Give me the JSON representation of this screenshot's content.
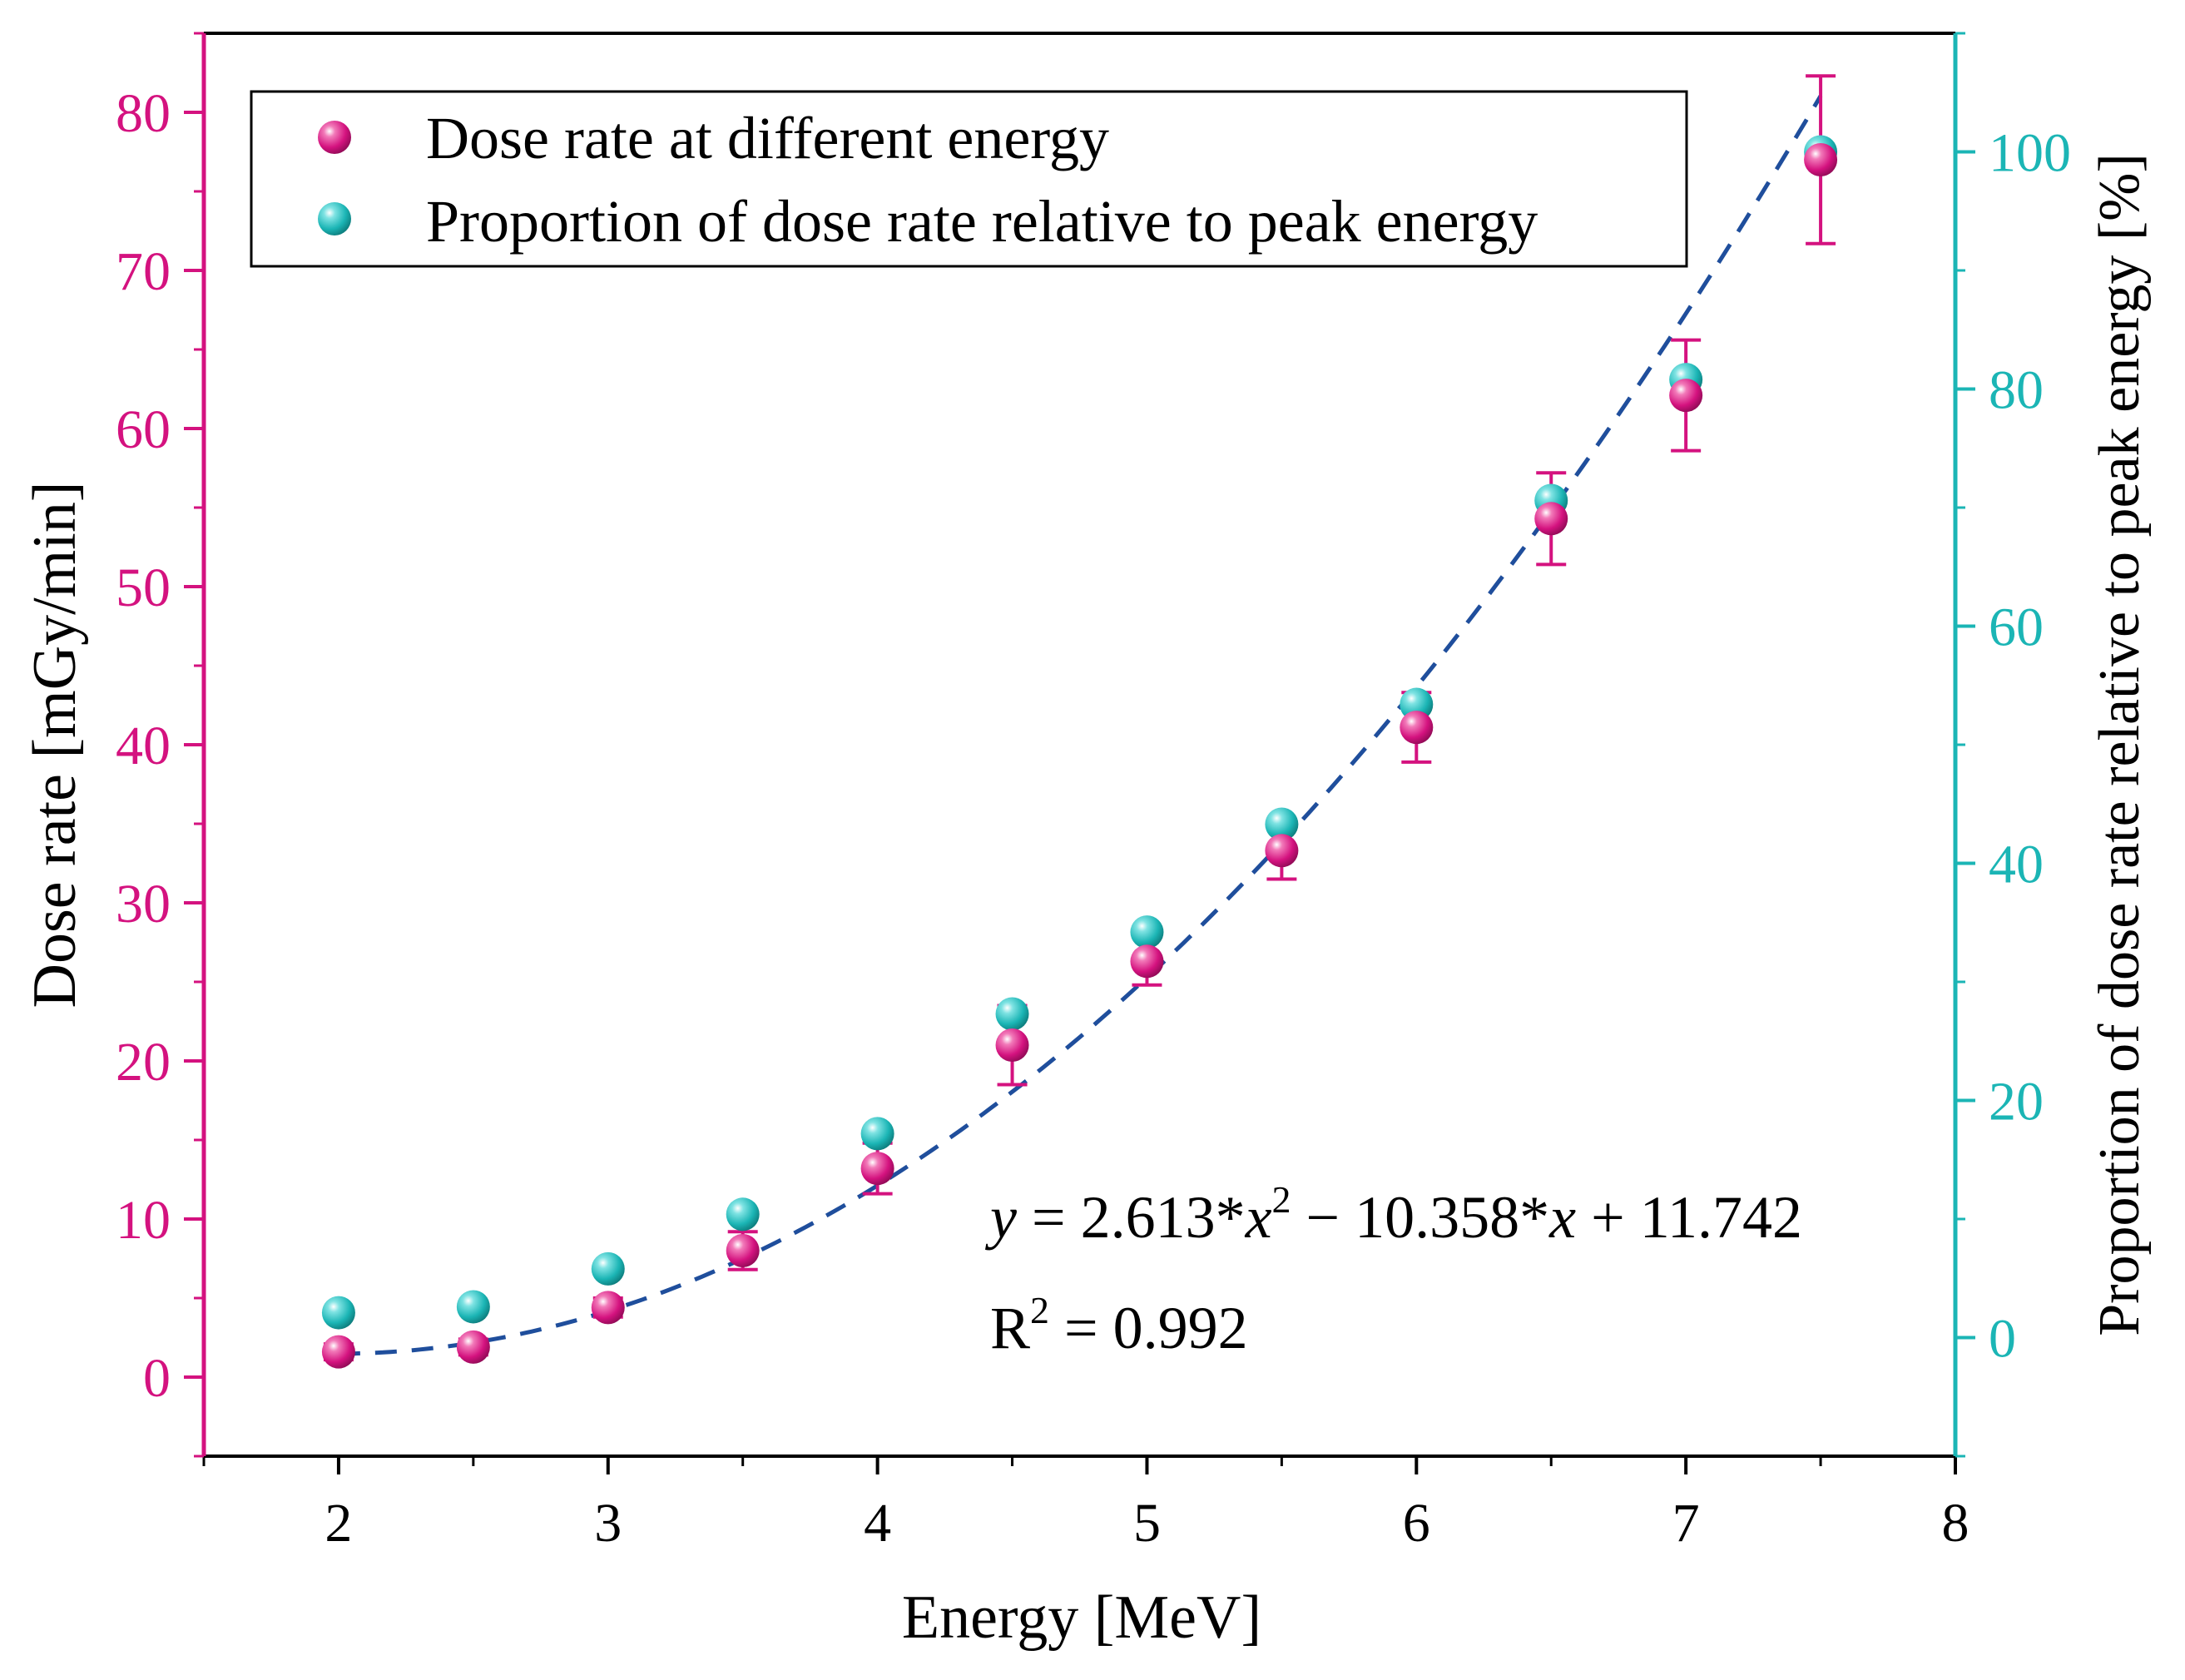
{
  "chart_data": {
    "type": "scatter",
    "xlabel": "Energy [MeV]",
    "ylabel_left": "Dose rate [mGy/min]",
    "ylabel_right": "Proportion of dose rate relative to peak energy [%]",
    "xlim": [
      1.5,
      8
    ],
    "ylim_left": [
      -5,
      85
    ],
    "ylim_right": [
      -10,
      110
    ],
    "x_ticks": [
      2,
      3,
      4,
      5,
      6,
      7,
      8
    ],
    "x_tick_labels": [
      "2",
      "3",
      "4",
      "5",
      "6",
      "7",
      "8"
    ],
    "y_ticks_left": [
      0,
      10,
      20,
      30,
      40,
      50,
      60,
      70,
      80
    ],
    "y_tick_labels_left": [
      "0",
      "10",
      "20",
      "30",
      "40",
      "50",
      "60",
      "70",
      "80"
    ],
    "y_ticks_right": [
      0,
      20,
      40,
      60,
      80,
      100
    ],
    "y_tick_labels_right": [
      "0",
      "20",
      "40",
      "60",
      "80",
      "100"
    ],
    "legend": {
      "placement": "top-left",
      "entries": [
        "Dose rate at different energy",
        "Proportion of dose rate relative to peak energy"
      ]
    },
    "series": [
      {
        "name": "Dose rate at different energy",
        "axis": "left",
        "color": "#d4127f",
        "x": [
          2,
          2.5,
          3,
          3.5,
          4,
          4.5,
          5,
          5.5,
          6,
          6.5,
          7,
          7.5
        ],
        "y": [
          1.6,
          1.9,
          4.4,
          8.0,
          13.2,
          21.0,
          26.3,
          33.3,
          41.1,
          54.3,
          62.1,
          77.0
        ],
        "error": [
          0.5,
          0.5,
          0.6,
          1.2,
          1.6,
          2.5,
          1.5,
          1.8,
          2.2,
          2.9,
          3.5,
          5.3
        ]
      },
      {
        "name": "Proportion of dose rate relative to peak energy",
        "axis": "right",
        "color": "#1bb5b5",
        "x": [
          2,
          2.5,
          3,
          3.5,
          4,
          4.5,
          5,
          5.5,
          6,
          6.5,
          7,
          7.5
        ],
        "y": [
          2.1,
          2.6,
          5.8,
          10.4,
          17.2,
          27.3,
          34.2,
          43.3,
          53.4,
          70.6,
          80.8,
          100.0
        ]
      }
    ],
    "fit": {
      "name": "Quadratic fit",
      "color": "#1f4e9c",
      "coefficients": [
        2.613,
        -10.358,
        11.742
      ],
      "x_range": [
        2,
        7.5
      ]
    },
    "annotations": {
      "equation": {
        "y": "y",
        "eq1": " = 2.613*",
        "x1": "x",
        "sup1": "2",
        "eq2": " − 10.358*",
        "x2": "x",
        "eq3": " + 11.742"
      },
      "r2": {
        "r": "R",
        "sup": "2",
        "value": " = 0.992"
      }
    },
    "colors": {
      "left_axis": "#d4127f",
      "right_axis": "#1bb5b5",
      "bottom_axis": "#000000"
    }
  }
}
